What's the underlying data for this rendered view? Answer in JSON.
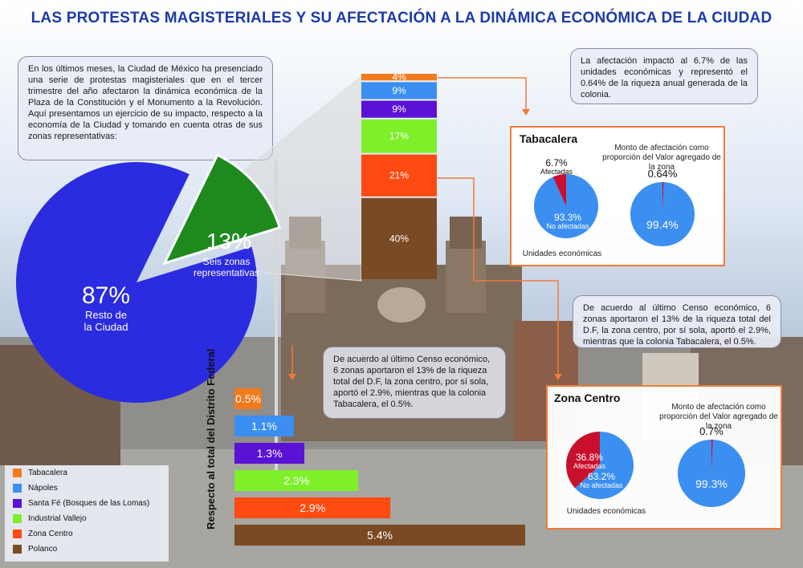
{
  "title": "LAS PROTESTAS MAGISTERIALES  Y SU AFECTACIÓN A LA DINÁMICA ECONÓMICA DE LA CIUDAD",
  "intro_text": "En los últimos meses, la Ciudad de México ha presenciado una serie de protestas magisteriales que en el tercer trimestre del año afectaron la dinámica económica de la Plaza de la Constitución y el Monumento a la Revolución. Aquí presentamos un ejercicio de su impacto, respecto a la economía de la Ciudad y tomando en cuenta otras de sus zonas representativas:",
  "note_top_right": "La afectación impactó al 6.7% de las unidades económicas y representó el 0.64% de la riqueza anual generada de la colonia.",
  "note_middle_right": "De acuerdo al último Censo económico, 6 zonas aportaron el 13% de la riqueza total del D.F,  la zona centro, por sí sola, aportó el 2.9%, mientras que la colonia Tabacalera,  el 0.5%.",
  "note_center": "De acuerdo al último Censo económico, 6 zonas aportaron el 13% de la riqueza total del D.F,  la zona centro, por sí sola, aportó el 2.9%, mientras que la colonia Tabacalera,  el 0.5%.",
  "vertical_axis_label": "Respecto al total del Distrito Federal",
  "colors": {
    "tabacalera": "#f07b1f",
    "napoles": "#3b8ff0",
    "santa_fe": "#5a12d6",
    "industrial_vallejo": "#7ef02a",
    "zona_centro": "#ff4a12",
    "polanco": "#7a4a24",
    "resto": "#2b2be0",
    "seis_zonas": "#1e8a1e",
    "afectadas": "#c8102e",
    "no_afectadas": "#3b8ff0"
  },
  "chart_data": [
    {
      "type": "pie",
      "slices": [
        {
          "label": "Resto de la Ciudad",
          "value": 87,
          "value_label": "87%",
          "color": "#2b2be0"
        },
        {
          "label": "Seis zonas representativas",
          "value": 13,
          "value_label": "13%",
          "color": "#1e8a1e"
        }
      ],
      "text_lines": {
        "resto": [
          "87%",
          "Resto de",
          "la Ciudad"
        ],
        "seis": [
          "13%",
          "Seis zonas",
          "representativas"
        ]
      }
    },
    {
      "type": "bar",
      "orientation": "stacked-vertical",
      "categories": [
        "Tabacalera",
        "Nápoles",
        "Santa Fé (Bosques de las Lomas)",
        "Industrial Vallejo",
        "Zona Centro",
        "Polanco"
      ],
      "values": [
        4,
        9,
        9,
        17,
        21,
        40
      ],
      "labels": [
        "4%",
        "9%",
        "9%",
        "17%",
        "21%",
        "40%"
      ]
    },
    {
      "type": "bar",
      "orientation": "horizontal",
      "categories": [
        "Tabacalera",
        "Nápoles",
        "Santa Fé (Bosques de las Lomas)",
        "Industrial Vallejo",
        "Zona Centro",
        "Polanco"
      ],
      "values": [
        0.5,
        1.1,
        1.3,
        2.3,
        2.9,
        5.4
      ],
      "labels": [
        "0.5%",
        "1.1%",
        "1.3%",
        "2.3%",
        "2.9%",
        "5.4%"
      ]
    },
    {
      "type": "pie",
      "panel": "Tabacalera",
      "caption": "Unidades económicas",
      "slices": [
        {
          "label": "Afectadas",
          "value": 6.7,
          "value_label": "6.7%"
        },
        {
          "label": "No afectadas",
          "value": 93.3,
          "value_label": "93.3%"
        }
      ]
    },
    {
      "type": "pie",
      "panel": "Tabacalera",
      "caption": "Monto de afectación como proporción del Valor agregado de la zona",
      "slices": [
        {
          "label": "",
          "value": 0.64,
          "value_label": "0.64%"
        },
        {
          "label": "",
          "value": 99.4,
          "value_label": "99.4%"
        }
      ]
    },
    {
      "type": "pie",
      "panel": "Zona Centro",
      "caption": "Unidades económicas",
      "slices": [
        {
          "label": "Afectadas",
          "value": 36.8,
          "value_label": "36.8%"
        },
        {
          "label": "No afectadas",
          "value": 63.2,
          "value_label": "63.2%"
        }
      ]
    },
    {
      "type": "pie",
      "panel": "Zona Centro",
      "caption": "Monto de afectación como proporción del Valor agregado de la zona",
      "slices": [
        {
          "label": "",
          "value": 0.7,
          "value_label": "0.7%"
        },
        {
          "label": "",
          "value": 99.3,
          "value_label": "99.3%"
        }
      ]
    }
  ],
  "panels": {
    "tabacalera": {
      "title": "Tabacalera",
      "pie1_caption": "Unidades económicas",
      "pie1_affected_value": "6.7%",
      "pie1_affected_label": "Afectadas",
      "pie1_rest_value": "93.3%",
      "pie1_rest_label": "No afectadas",
      "pie2_caption": "Monto de afectación como proporción del Valor agregado de la zona",
      "pie2_small_value": "0.64%",
      "pie2_rest_value": "99.4%"
    },
    "zona_centro": {
      "title": "Zona Centro",
      "pie1_caption": "Unidades económicas",
      "pie1_affected_value": "36.8%",
      "pie1_affected_label": "Afectadas",
      "pie1_rest_value": "63.2%",
      "pie1_rest_label": "No afectadas",
      "pie2_caption": "Monto de afectación como proporción del Valor agregado de la zona",
      "pie2_small_value": "0.7%",
      "pie2_rest_value": "99.3%"
    }
  },
  "legend": [
    "Tabacalera",
    "Nápoles",
    "Santa Fé (Bosques de las Lomas)",
    "Industrial Vallejo",
    "Zona Centro",
    "Polanco"
  ]
}
